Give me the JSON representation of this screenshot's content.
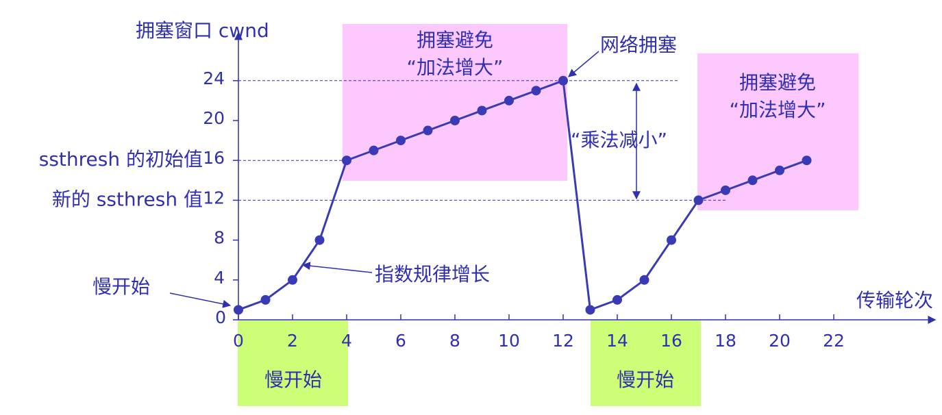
{
  "chart_data": {
    "type": "line",
    "x_label": "传输轮次",
    "y_label": "拥塞窗口 cwnd",
    "x": [
      0,
      1,
      2,
      3,
      4,
      5,
      6,
      7,
      8,
      9,
      10,
      11,
      12,
      13,
      14,
      15,
      16,
      17,
      18,
      19,
      20,
      21
    ],
    "values": [
      1,
      2,
      4,
      8,
      16,
      17,
      18,
      19,
      20,
      21,
      22,
      23,
      24,
      1,
      2,
      4,
      8,
      12,
      13,
      14,
      15,
      16
    ],
    "color": "#3a3ab4",
    "xlim": [
      0,
      25.5
    ],
    "ylim": [
      0,
      28
    ],
    "xticks": [
      0,
      2,
      4,
      6,
      8,
      10,
      12,
      14,
      16,
      18,
      20,
      22
    ],
    "yticks": [
      0,
      4,
      8,
      12,
      16,
      20,
      24
    ],
    "thresholds": [
      {
        "value": 16,
        "label": "ssthresh 的初始值"
      },
      {
        "value": 12,
        "label": "新的 ssthresh 值"
      }
    ],
    "regions": [
      {
        "title": "拥塞避免",
        "subtitle": "“加法增大”"
      },
      {
        "title": "拥塞避免",
        "subtitle": "“加法增大”"
      }
    ],
    "phases": [
      "慢开始",
      "慢开始"
    ],
    "annotations": [
      "慢开始",
      "指数规律增长",
      "网络拥塞",
      "“乘法减小”"
    ]
  }
}
